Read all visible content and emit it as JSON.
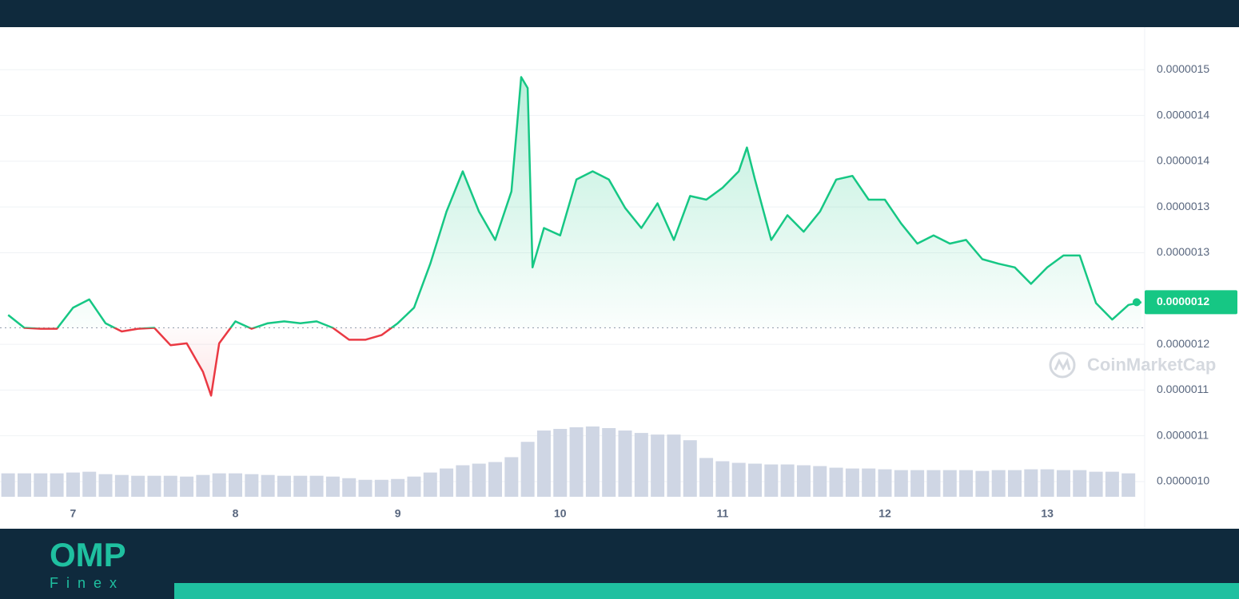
{
  "chart_data": {
    "type": "line",
    "x": [
      6.6,
      6.7,
      6.8,
      6.9,
      7.0,
      7.1,
      7.2,
      7.3,
      7.4,
      7.5,
      7.6,
      7.7,
      7.8,
      7.85,
      7.9,
      8.0,
      8.1,
      8.2,
      8.3,
      8.4,
      8.5,
      8.6,
      8.7,
      8.8,
      8.9,
      9.0,
      9.1,
      9.2,
      9.3,
      9.4,
      9.5,
      9.6,
      9.7,
      9.76,
      9.8,
      9.83,
      9.9,
      10.0,
      10.1,
      10.2,
      10.3,
      10.4,
      10.5,
      10.6,
      10.7,
      10.8,
      10.9,
      11.0,
      11.1,
      11.15,
      11.2,
      11.3,
      11.4,
      11.5,
      11.6,
      11.7,
      11.8,
      11.9,
      12.0,
      12.1,
      12.2,
      12.3,
      12.4,
      12.5,
      12.6,
      12.7,
      12.8,
      12.9,
      13.0,
      13.1,
      13.2,
      13.3,
      13.4,
      13.5,
      13.58
    ],
    "values": [
      1.182e-06,
      1.168e-06,
      1.167e-06,
      1.167e-06,
      1.19e-06,
      1.199e-06,
      1.173e-06,
      1.164e-06,
      1.167e-06,
      1.168e-06,
      1.149e-06,
      1.151e-06,
      1.12e-06,
      1.094e-06,
      1.151e-06,
      1.175e-06,
      1.167e-06,
      1.173e-06,
      1.175e-06,
      1.173e-06,
      1.175e-06,
      1.168e-06,
      1.155e-06,
      1.155e-06,
      1.16e-06,
      1.173e-06,
      1.19e-06,
      1.238e-06,
      1.295e-06,
      1.339e-06,
      1.295e-06,
      1.264e-06,
      1.317e-06,
      1.442e-06,
      1.43e-06,
      1.234e-06,
      1.277e-06,
      1.269e-06,
      1.33e-06,
      1.339e-06,
      1.33e-06,
      1.299e-06,
      1.277e-06,
      1.304e-06,
      1.264e-06,
      1.312e-06,
      1.308e-06,
      1.321e-06,
      1.339e-06,
      1.365e-06,
      1.33e-06,
      1.264e-06,
      1.291e-06,
      1.273e-06,
      1.295e-06,
      1.33e-06,
      1.334e-06,
      1.308e-06,
      1.308e-06,
      1.282e-06,
      1.26e-06,
      1.269e-06,
      1.26e-06,
      1.264e-06,
      1.243e-06,
      1.238e-06,
      1.234e-06,
      1.216e-06,
      1.234e-06,
      1.247e-06,
      1.247e-06,
      1.195e-06,
      1.177e-06,
      1.193e-06,
      1.196e-06
    ],
    "baseline": 1.168e-06,
    "up_color": "#16c784",
    "down_color": "#ea3943",
    "current_price": {
      "value": 1.196e-06,
      "label": "0.0000012"
    },
    "xlim": [
      6.55,
      13.6
    ],
    "xticks": [
      7,
      8,
      9,
      10,
      11,
      12,
      13
    ],
    "ylim": [
      9.834e-07,
      1.4965e-06
    ],
    "yticks": [
      {
        "value": 1e-06,
        "label": "0.0000010"
      },
      {
        "value": 1.05e-06,
        "label": "0.0000011"
      },
      {
        "value": 1.1e-06,
        "label": "0.0000011"
      },
      {
        "value": 1.15e-06,
        "label": "0.0000012"
      },
      {
        "value": 1.25e-06,
        "label": "0.0000013"
      },
      {
        "value": 1.3e-06,
        "label": "0.0000013"
      },
      {
        "value": 1.35e-06,
        "label": "0.0000014"
      },
      {
        "value": 1.4e-06,
        "label": "0.0000014"
      },
      {
        "value": 1.45e-06,
        "label": "0.0000015"
      }
    ],
    "grid": true,
    "volume": {
      "color": "#cfd6e4",
      "x": [
        6.6,
        6.7,
        6.8,
        6.9,
        7.0,
        7.1,
        7.2,
        7.3,
        7.4,
        7.5,
        7.6,
        7.7,
        7.8,
        7.9,
        8.0,
        8.1,
        8.2,
        8.3,
        8.4,
        8.5,
        8.6,
        8.7,
        8.8,
        8.9,
        9.0,
        9.1,
        9.2,
        9.3,
        9.4,
        9.5,
        9.6,
        9.7,
        9.8,
        9.9,
        10.0,
        10.1,
        10.2,
        10.3,
        10.4,
        10.5,
        10.6,
        10.7,
        10.8,
        10.9,
        11.0,
        11.1,
        11.2,
        11.3,
        11.4,
        11.5,
        11.6,
        11.7,
        11.8,
        11.9,
        12.0,
        12.1,
        12.2,
        12.3,
        12.4,
        12.5,
        12.6,
        12.7,
        12.8,
        12.9,
        13.0,
        13.1,
        13.2,
        13.3,
        13.4,
        13.5
      ],
      "values": [
        29,
        29,
        29,
        29,
        30,
        31,
        28,
        27,
        26,
        26,
        26,
        25,
        27,
        29,
        29,
        28,
        27,
        26,
        26,
        26,
        25,
        23,
        21,
        21,
        22,
        25,
        30,
        35,
        39,
        41,
        43,
        49,
        68,
        82,
        84,
        86,
        87,
        85,
        82,
        79,
        77,
        77,
        70,
        48,
        44,
        42,
        41,
        40,
        40,
        39,
        38,
        36,
        35,
        35,
        34,
        33,
        33,
        33,
        33,
        33,
        32,
        33,
        33,
        34,
        34,
        33,
        33,
        31,
        31,
        29
      ]
    }
  },
  "watermark": "CoinMarketCap",
  "logo": {
    "title": "OMP",
    "subtitle": "Finex"
  }
}
